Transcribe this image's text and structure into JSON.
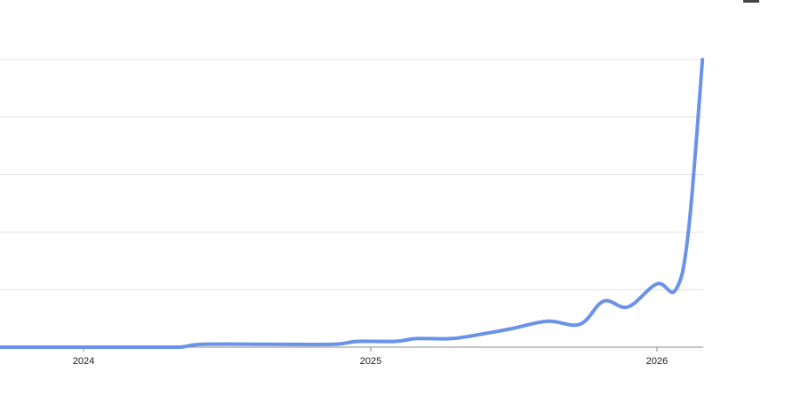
{
  "chart_data": {
    "type": "line",
    "title": "",
    "xlabel": "",
    "ylabel": "",
    "x_ticks": [
      "2024",
      "2025",
      "2026"
    ],
    "ylim": [
      0,
      100
    ],
    "grid": true,
    "color": "#6a93e8",
    "series": [
      {
        "points": [
          [
            "2023-09-01",
            0
          ],
          [
            "2023-12-01",
            0
          ],
          [
            "2024-03-01",
            0
          ],
          [
            "2024-05-01",
            0
          ],
          [
            "2024-06-01",
            1
          ],
          [
            "2024-09-01",
            1
          ],
          [
            "2024-11-15",
            1
          ],
          [
            "2024-12-15",
            2
          ],
          [
            "2025-02-01",
            2
          ],
          [
            "2025-03-01",
            3
          ],
          [
            "2025-04-15",
            3
          ],
          [
            "2025-06-01",
            5
          ],
          [
            "2025-07-01",
            6.5
          ],
          [
            "2025-08-15",
            9
          ],
          [
            "2025-09-25",
            8
          ],
          [
            "2025-10-25",
            16
          ],
          [
            "2025-11-25",
            14
          ],
          [
            "2026-01-01",
            22
          ],
          [
            "2026-01-25",
            20
          ],
          [
            "2026-02-10",
            40
          ],
          [
            "2026-02-28",
            100
          ]
        ]
      }
    ]
  }
}
